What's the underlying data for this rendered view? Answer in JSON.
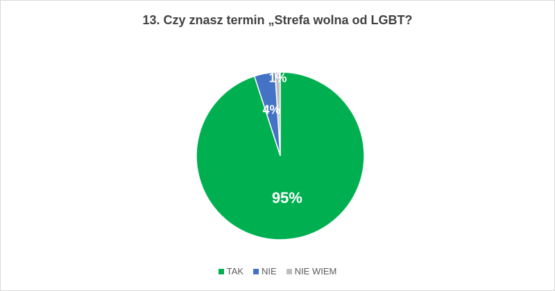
{
  "chart_data": {
    "type": "pie",
    "title": "13. Czy znasz termin „Strefa wolna od LGBT?",
    "categories": [
      "TAK",
      "NIE",
      "NIE WIEM"
    ],
    "values": [
      95,
      4,
      1
    ],
    "value_labels": [
      "95%",
      "4%",
      "1%"
    ],
    "colors": [
      "#00b050",
      "#4472c4",
      "#bfbfbf"
    ],
    "legend_position": "bottom"
  }
}
